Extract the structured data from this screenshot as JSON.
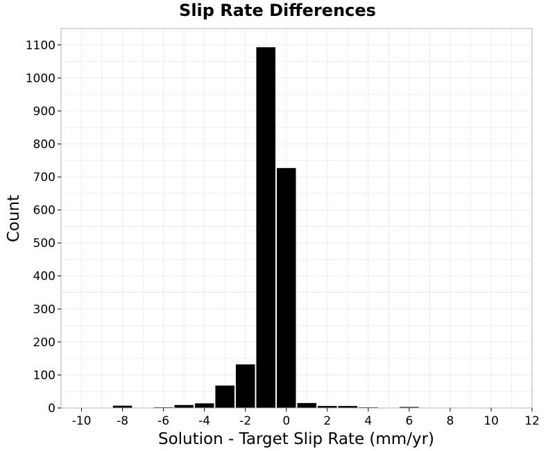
{
  "chart_data": {
    "type": "bar",
    "title": "Slip Rate Differences",
    "xlabel": "Solution - Target Slip Rate (mm/yr)",
    "ylabel": "Count",
    "xlim": [
      -11,
      12
    ],
    "ylim": [
      0,
      1150
    ],
    "bin_width": 1,
    "x_ticks": [
      -10,
      -8,
      -6,
      -4,
      -2,
      0,
      2,
      4,
      6,
      8,
      10,
      12
    ],
    "y_ticks": [
      0,
      100,
      200,
      300,
      400,
      500,
      600,
      700,
      800,
      900,
      1000,
      1100
    ],
    "grid": true,
    "bar_color": "#000000",
    "bars": [
      {
        "x": -10,
        "value": 0
      },
      {
        "x": -9,
        "value": 1
      },
      {
        "x": -8,
        "value": 7
      },
      {
        "x": -7,
        "value": 0
      },
      {
        "x": -6,
        "value": 2
      },
      {
        "x": -5,
        "value": 9
      },
      {
        "x": -4,
        "value": 14
      },
      {
        "x": -3,
        "value": 68
      },
      {
        "x": -2,
        "value": 132
      },
      {
        "x": -1,
        "value": 1093
      },
      {
        "x": 0,
        "value": 727
      },
      {
        "x": 1,
        "value": 15
      },
      {
        "x": 2,
        "value": 6
      },
      {
        "x": 3,
        "value": 6
      },
      {
        "x": 4,
        "value": 2
      },
      {
        "x": 5,
        "value": 0
      },
      {
        "x": 6,
        "value": 3
      },
      {
        "x": 7,
        "value": 0
      },
      {
        "x": 8,
        "value": 0
      },
      {
        "x": 9,
        "value": 0
      },
      {
        "x": 10,
        "value": 0
      },
      {
        "x": 11,
        "value": 0
      }
    ]
  }
}
